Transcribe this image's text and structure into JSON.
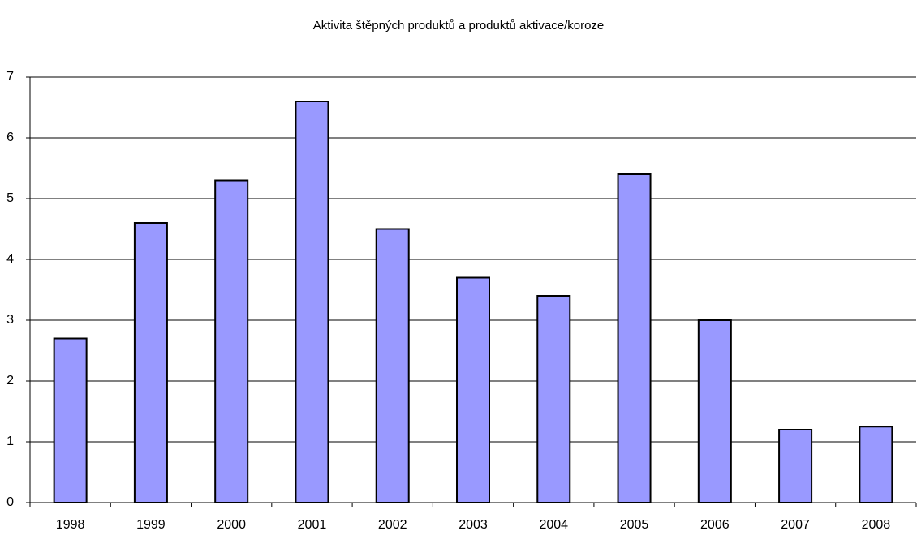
{
  "chart_data": {
    "type": "bar",
    "title": "Aktivita štěpných produktů a produktů aktivace/koroze",
    "categories": [
      "1998",
      "1999",
      "2000",
      "2001",
      "2002",
      "2003",
      "2004",
      "2005",
      "2006",
      "2007",
      "2008"
    ],
    "values": [
      2.7,
      4.6,
      5.3,
      6.6,
      4.5,
      3.7,
      3.4,
      5.4,
      3.0,
      1.2,
      1.25
    ],
    "color": "#9999ff",
    "ylim": [
      0,
      7
    ],
    "yticks": [
      0,
      1,
      2,
      3,
      4,
      5,
      6,
      7
    ],
    "grid": true
  }
}
